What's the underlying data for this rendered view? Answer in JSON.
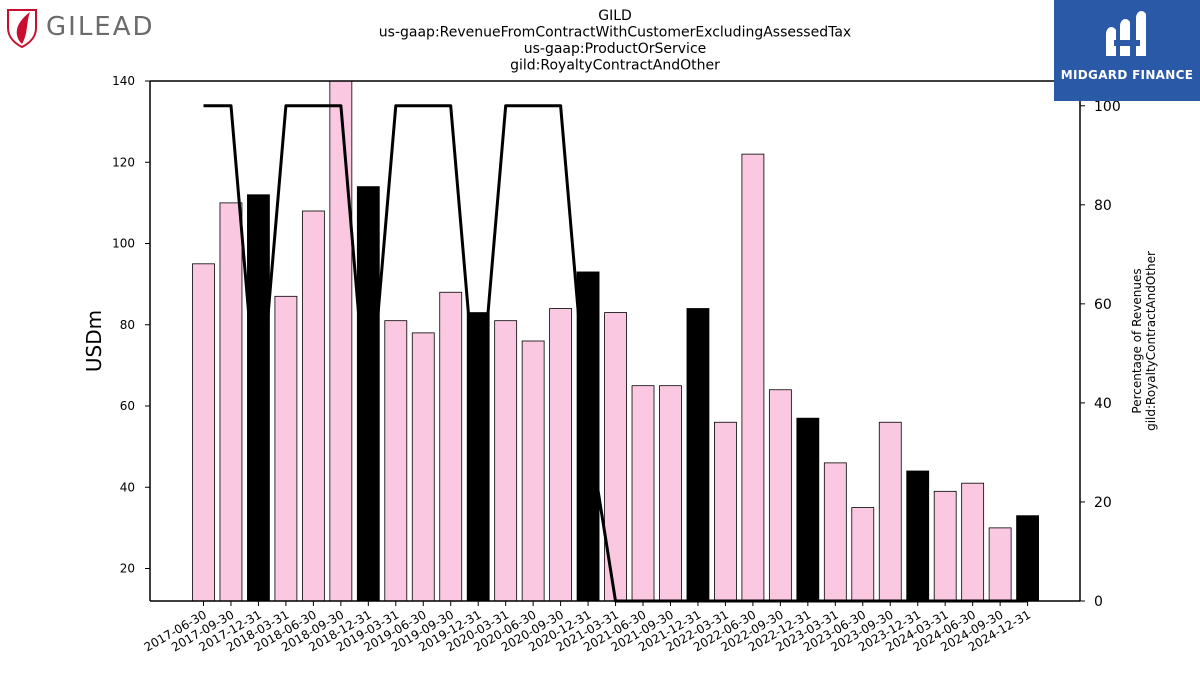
{
  "logos": {
    "left": {
      "icon": "gilead-leaf-icon",
      "text": "GILEAD",
      "color": "#c8102e"
    },
    "right": {
      "icon": "midgard-logo-icon",
      "text": "MIDGARD FINANCE",
      "background": "#2a59a8"
    }
  },
  "chart_data": {
    "type": "bar",
    "title_lines": [
      "GILD",
      "us-gaap:RevenueFromContractWithCustomerExcludingAssessedTax",
      "us-gaap:ProductOrService",
      "gild:RoyaltyContractAndOther"
    ],
    "ylabel": "USDm",
    "ylabel_right": [
      "Percentage of Revenues",
      "gild:RoyaltyContractAndOther"
    ],
    "ylim": [
      12,
      140
    ],
    "ylim_right": [
      0,
      105
    ],
    "yticks": [
      20,
      40,
      60,
      80,
      100,
      120,
      140
    ],
    "yticks_right": [
      0,
      20,
      40,
      60,
      80,
      100
    ],
    "colors": {
      "quarter_bar": "#fbc8e2",
      "year_end_bar": "#000000",
      "line": "#000000"
    },
    "categories": [
      "2017-06-30",
      "2017-09-30",
      "2017-12-31",
      "2018-03-31",
      "2018-06-30",
      "2018-09-30",
      "2018-12-31",
      "2019-03-31",
      "2019-06-30",
      "2019-09-30",
      "2019-12-31",
      "2020-03-31",
      "2020-06-30",
      "2020-09-30",
      "2020-12-31",
      "2021-03-31",
      "2021-06-30",
      "2021-09-30",
      "2021-12-31",
      "2022-03-31",
      "2022-06-30",
      "2022-09-30",
      "2022-12-31",
      "2023-03-31",
      "2023-06-30",
      "2023-09-30",
      "2023-12-31",
      "2024-03-31",
      "2024-06-30",
      "2024-09-30",
      "2024-12-31"
    ],
    "series": [
      {
        "kind": "bar",
        "values": [
          95,
          110,
          112,
          87,
          108,
          141,
          114,
          81,
          78,
          88,
          83,
          81,
          76,
          84,
          93,
          83,
          65,
          65,
          84,
          56,
          122,
          64,
          57,
          46,
          35,
          56,
          44,
          39,
          41,
          30,
          33
        ],
        "year_end": [
          false,
          false,
          true,
          false,
          false,
          false,
          true,
          false,
          false,
          false,
          true,
          false,
          false,
          false,
          true,
          false,
          false,
          false,
          true,
          false,
          false,
          false,
          true,
          false,
          false,
          false,
          true,
          false,
          false,
          false,
          true
        ]
      },
      {
        "kind": "line",
        "axis": "right",
        "values": [
          100,
          100,
          35,
          100,
          100,
          100,
          35,
          100,
          100,
          100,
          35,
          100,
          100,
          100,
          35,
          0,
          0,
          0,
          0,
          0,
          0,
          0,
          0,
          0,
          0,
          0,
          0,
          0,
          0,
          0,
          0
        ]
      }
    ],
    "grid": false
  }
}
